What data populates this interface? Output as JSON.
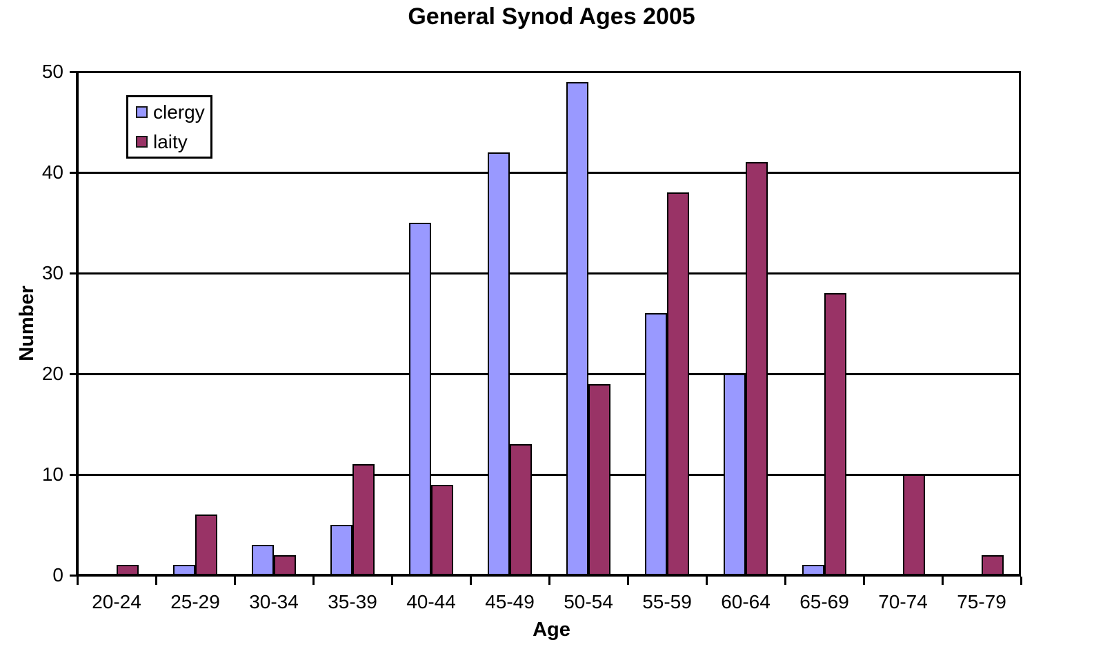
{
  "chart_data": {
    "type": "bar",
    "title": "General Synod Ages 2005",
    "xlabel": "Age",
    "ylabel": "Number",
    "categories": [
      "20-24",
      "25-29",
      "30-34",
      "35-39",
      "40-44",
      "45-49",
      "50-54",
      "55-59",
      "60-64",
      "65-69",
      "70-74",
      "75-79"
    ],
    "series": [
      {
        "name": "clergy",
        "color": "#9999FF",
        "values": [
          0,
          1,
          3,
          5,
          35,
          42,
          49,
          26,
          20,
          1,
          0,
          0
        ]
      },
      {
        "name": "laity",
        "color": "#993366",
        "values": [
          1,
          6,
          2,
          11,
          9,
          13,
          19,
          38,
          41,
          28,
          10,
          2
        ]
      }
    ],
    "ylim": [
      0,
      50
    ],
    "yticks": [
      0,
      10,
      20,
      30,
      40,
      50
    ],
    "grid": true,
    "legend_position": "upper-left-inside",
    "colors": {
      "background": "#ffffff",
      "axis": "#000000",
      "text": "#000000"
    }
  }
}
